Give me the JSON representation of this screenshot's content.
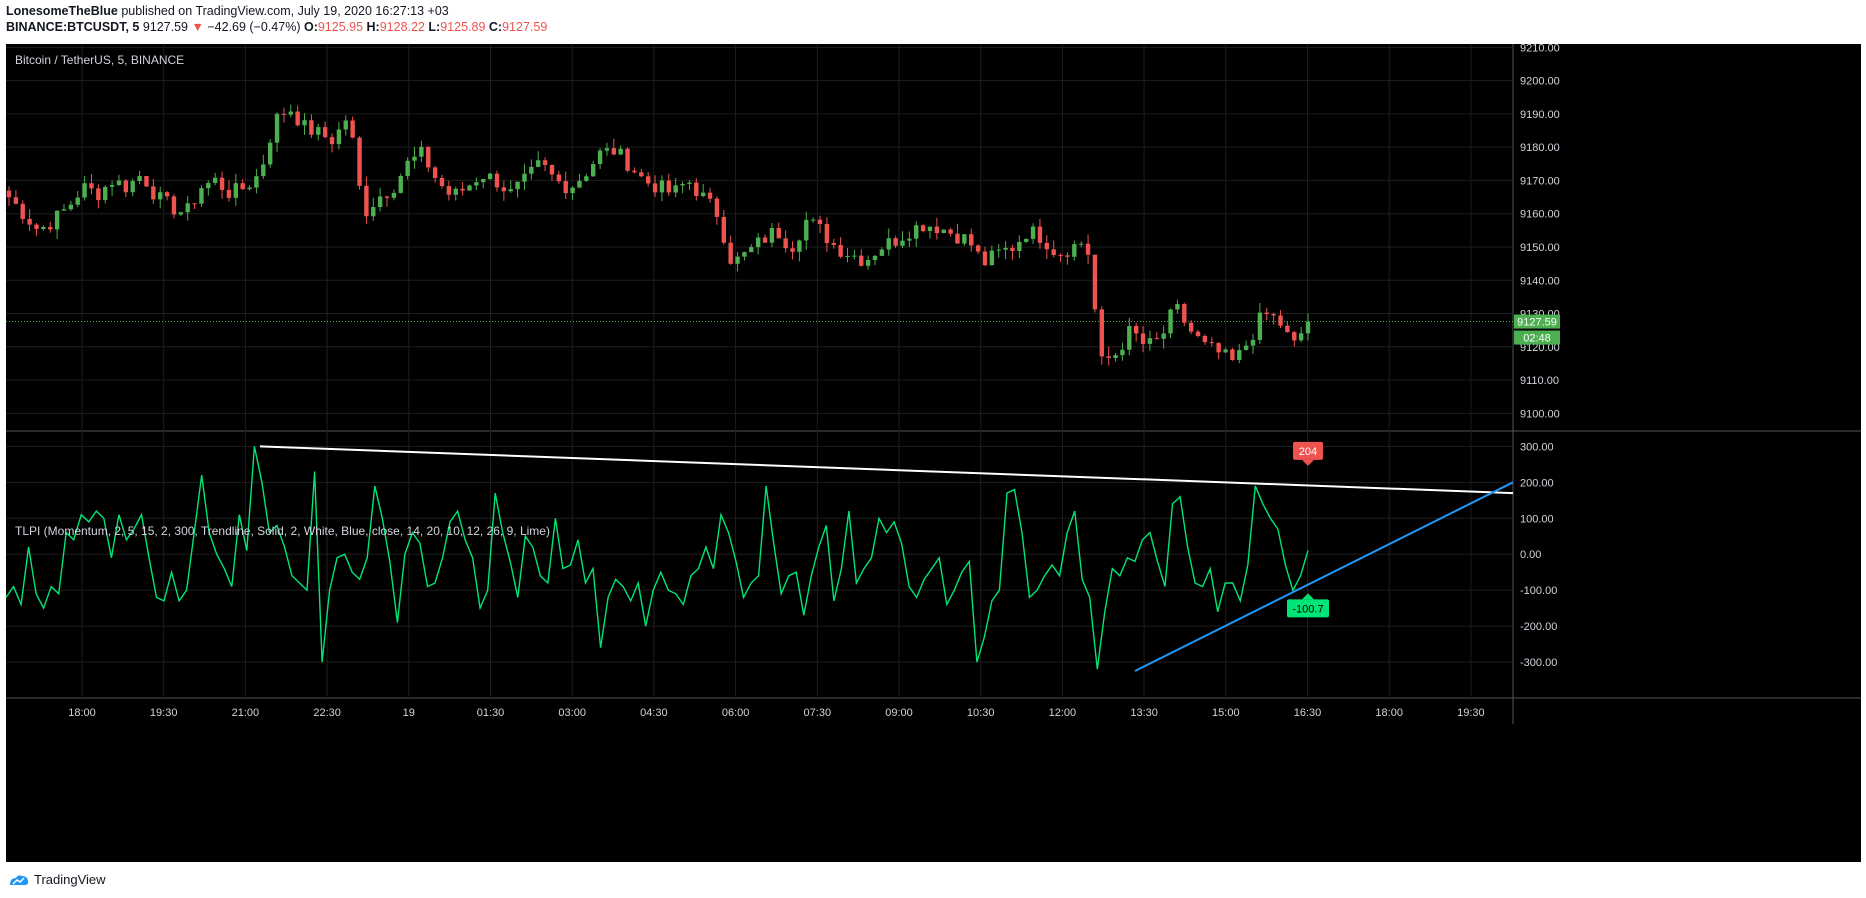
{
  "header": {
    "author": "LonesomeTheBlue",
    "published": "published on TradingView.com, July 19, 2020 16:27:13 +03",
    "symbol": "BINANCE:BTCUSDT, 5",
    "last": "9127.59",
    "change_arrow": "▼",
    "change": "−42.69 (−0.47%)",
    "o_label": "O:",
    "o_value": "9125.95",
    "h_label": "H:",
    "h_value": "9128.22",
    "l_label": "L:",
    "l_value": "9125.89",
    "c_label": "C:",
    "c_value": "9127.59"
  },
  "price_pane": {
    "title": "Bitcoin / TetherUS, 5, BINANCE",
    "price_tag": "9127.59",
    "countdown_tag": "02:48"
  },
  "indicator_pane": {
    "title": "TLPI (Momentum, 2, 5, 15, 2, 300, Trendline, Solid, 2, White, Blue, close, 14, 20, 10, 12, 26, 9, Lime)",
    "marker_high": "204",
    "marker_low": "-100.7"
  },
  "footer": {
    "brand": "TradingView",
    "logo_icon": "tradingview-logo-icon"
  },
  "colors": {
    "up": "#26a69a",
    "up_candle": "#4caf50",
    "down": "#ef5350",
    "momentum": "#00e676",
    "upper_trend": "#ffffff",
    "lower_trend": "#2196f3",
    "background": "#000000"
  },
  "chart_data": [
    {
      "type": "candlestick",
      "title": "Bitcoin / TetherUS, 5, BINANCE",
      "y_ticks": [
        "9210.00",
        "9200.00",
        "9190.00",
        "9180.00",
        "9170.00",
        "9160.00",
        "9150.00",
        "9140.00",
        "9130.00",
        "9120.00",
        "9110.00",
        "9100.00"
      ],
      "ylim": [
        9095,
        9211
      ],
      "x_ticks": [
        "18:00",
        "19:30",
        "21:00",
        "22:30",
        "19",
        "01:30",
        "03:00",
        "04:30",
        "06:00",
        "07:30",
        "09:00",
        "10:30",
        "12:00",
        "13:30",
        "15:00",
        "16:30",
        "18:00",
        "19:30"
      ],
      "close_path": [
        9165,
        9160,
        9155,
        9158,
        9162,
        9168,
        9166,
        9170,
        9168,
        9172,
        9165,
        9162,
        9160,
        9168,
        9170,
        9166,
        9168,
        9172,
        9188,
        9192,
        9186,
        9184,
        9182,
        9190,
        9160,
        9165,
        9168,
        9175,
        9178,
        9170,
        9165,
        9168,
        9172,
        9170,
        9166,
        9170,
        9175,
        9170,
        9168,
        9172,
        9178,
        9179,
        9175,
        9170,
        9168,
        9166,
        9170,
        9165,
        9160,
        9145,
        9148,
        9152,
        9155,
        9150,
        9158,
        9155,
        9150,
        9148,
        9146,
        9150,
        9152,
        9155,
        9157,
        9156,
        9154,
        9152,
        9145,
        9148,
        9150,
        9155,
        9153,
        9148,
        9150,
        9152,
        9115,
        9118,
        9125,
        9120,
        9122,
        9132,
        9125,
        9120,
        9118,
        9115,
        9122,
        9130,
        9128,
        9120,
        9127.59
      ],
      "last_price": 9127.59
    },
    {
      "type": "line",
      "title": "TLPI (Momentum, 2, 5, 15, 2, 300, Trendline, Solid, 2, White, Blue, close, 14, 20, 10, 12, 26, 9, Lime)",
      "y_ticks": [
        "300.00",
        "200.00",
        "100.00",
        "0.00",
        "-100.00",
        "-200.00",
        "-300.00"
      ],
      "ylim": [
        -400,
        340
      ],
      "values": [
        -120,
        -90,
        -140,
        20,
        -110,
        -150,
        -90,
        -110,
        60,
        40,
        110,
        90,
        120,
        100,
        -10,
        110,
        40,
        70,
        110,
        -10,
        -120,
        -130,
        -50,
        -130,
        -100,
        60,
        220,
        60,
        0,
        -40,
        -90,
        110,
        10,
        300,
        200,
        60,
        80,
        20,
        -60,
        -80,
        -100,
        230,
        -300,
        -100,
        -10,
        0,
        -50,
        -70,
        -10,
        190,
        100,
        -20,
        -190,
        0,
        60,
        30,
        -90,
        -80,
        -10,
        90,
        120,
        40,
        -10,
        -150,
        -100,
        170,
        60,
        -20,
        -120,
        50,
        20,
        -60,
        -80,
        100,
        -40,
        -30,
        40,
        -80,
        -40,
        -260,
        -120,
        -70,
        -90,
        -130,
        -80,
        -200,
        -100,
        -50,
        -100,
        -110,
        -140,
        -60,
        -40,
        20,
        -40,
        110,
        60,
        -20,
        -120,
        -80,
        -60,
        190,
        30,
        -110,
        -60,
        -50,
        -170,
        -60,
        20,
        80,
        -130,
        -40,
        120,
        -80,
        -40,
        -10,
        100,
        60,
        90,
        30,
        -90,
        -120,
        -70,
        -40,
        -10,
        -140,
        -100,
        -50,
        -20,
        -300,
        -230,
        -130,
        -100,
        170,
        180,
        60,
        -120,
        -100,
        -60,
        -30,
        -60,
        60,
        120,
        -70,
        -120,
        -320,
        -160,
        -40,
        -60,
        -10,
        -20,
        40,
        60,
        -20,
        -90,
        140,
        160,
        20,
        -80,
        -90,
        -40,
        -160,
        -80,
        -80,
        -130,
        -30,
        190,
        140,
        100,
        70,
        -30,
        -100.7,
        -60,
        10
      ],
      "upper_trendline": {
        "from": 300,
        "to": 170
      },
      "lower_trendline": {
        "from": -325,
        "to": 200
      },
      "marker_high": 204,
      "marker_low": -100.7
    }
  ]
}
